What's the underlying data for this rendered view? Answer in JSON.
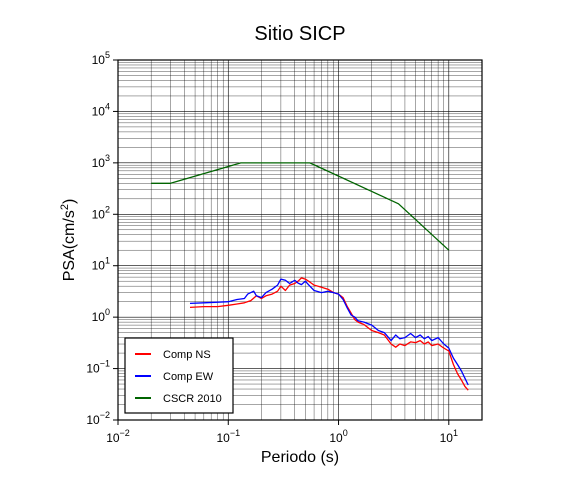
{
  "chart_data": {
    "type": "line",
    "title": "Sitio SICP",
    "xlabel": "Periodo (s)",
    "ylabel": {
      "base": "PSA(cm/s",
      "sup": "2",
      "close": ")"
    },
    "x_scale": "log",
    "y_scale": "log",
    "xlim": [
      0.01,
      20
    ],
    "ylim": [
      0.01,
      100000
    ],
    "grid": true,
    "legend_position": "bottom-left",
    "x_ticks": [
      {
        "value": 0.01,
        "base": "10",
        "exp": "−2"
      },
      {
        "value": 0.1,
        "base": "10",
        "exp": "−1"
      },
      {
        "value": 1,
        "base": "10",
        "exp": "0"
      },
      {
        "value": 10,
        "base": "10",
        "exp": "1"
      }
    ],
    "y_ticks": [
      {
        "value": 0.01,
        "base": "10",
        "exp": "−2"
      },
      {
        "value": 0.1,
        "base": "10",
        "exp": "−1"
      },
      {
        "value": 1,
        "base": "10",
        "exp": "0"
      },
      {
        "value": 10,
        "base": "10",
        "exp": "1"
      },
      {
        "value": 100,
        "base": "10",
        "exp": "2"
      },
      {
        "value": 1000,
        "base": "10",
        "exp": "3"
      },
      {
        "value": 10000,
        "base": "10",
        "exp": "4"
      },
      {
        "value": 100000,
        "base": "10",
        "exp": "5"
      }
    ],
    "series": [
      {
        "name": "Comp NS",
        "color": "#ff0000",
        "x": [
          0.045,
          0.06,
          0.08,
          0.1,
          0.12,
          0.14,
          0.16,
          0.18,
          0.2,
          0.22,
          0.25,
          0.28,
          0.3,
          0.33,
          0.36,
          0.4,
          0.43,
          0.46,
          0.5,
          0.55,
          0.6,
          0.7,
          0.8,
          0.9,
          1.0,
          1.1,
          1.2,
          1.3,
          1.4,
          1.5,
          1.7,
          2.0,
          2.3,
          2.6,
          3.0,
          3.3,
          3.6,
          4.0,
          4.5,
          5.0,
          5.5,
          6.0,
          6.5,
          7.0,
          8.0,
          9.0,
          10.0,
          11.0,
          12.0,
          13.0,
          14.0,
          15.0
        ],
        "y": [
          1.55,
          1.6,
          1.6,
          1.7,
          1.8,
          1.9,
          2.1,
          2.6,
          2.3,
          2.6,
          2.8,
          3.2,
          4.0,
          3.3,
          4.2,
          4.5,
          5.0,
          5.8,
          5.5,
          4.8,
          4.2,
          3.8,
          3.5,
          3.0,
          2.8,
          2.4,
          1.6,
          1.2,
          0.9,
          0.8,
          0.72,
          0.55,
          0.5,
          0.45,
          0.3,
          0.26,
          0.3,
          0.28,
          0.33,
          0.32,
          0.35,
          0.3,
          0.33,
          0.28,
          0.3,
          0.25,
          0.22,
          0.12,
          0.08,
          0.06,
          0.045,
          0.038
        ]
      },
      {
        "name": "Comp EW",
        "color": "#0000ff",
        "x": [
          0.045,
          0.06,
          0.08,
          0.1,
          0.12,
          0.14,
          0.15,
          0.17,
          0.18,
          0.2,
          0.22,
          0.25,
          0.28,
          0.3,
          0.33,
          0.36,
          0.4,
          0.43,
          0.46,
          0.5,
          0.55,
          0.6,
          0.7,
          0.8,
          0.9,
          1.0,
          1.1,
          1.2,
          1.3,
          1.4,
          1.5,
          1.7,
          2.0,
          2.3,
          2.6,
          3.0,
          3.3,
          3.6,
          4.0,
          4.5,
          5.0,
          5.5,
          6.0,
          6.5,
          7.0,
          8.0,
          9.0,
          10.0,
          11.0,
          12.0,
          13.0,
          14.0,
          15.0
        ],
        "y": [
          1.85,
          1.9,
          1.95,
          2.0,
          2.2,
          2.3,
          2.8,
          3.2,
          2.6,
          2.4,
          3.0,
          3.5,
          4.2,
          5.5,
          5.2,
          4.5,
          5.2,
          4.6,
          4.3,
          5.0,
          4.0,
          3.3,
          3.0,
          3.2,
          3.0,
          2.8,
          2.2,
          1.5,
          1.1,
          1.0,
          0.85,
          0.8,
          0.7,
          0.55,
          0.5,
          0.35,
          0.45,
          0.38,
          0.4,
          0.48,
          0.4,
          0.45,
          0.38,
          0.42,
          0.35,
          0.4,
          0.3,
          0.25,
          0.16,
          0.12,
          0.09,
          0.065,
          0.048
        ]
      },
      {
        "name": "CSCR 2010",
        "color": "#006400",
        "x": [
          0.02,
          0.03,
          0.13,
          0.55,
          3.5,
          10.0
        ],
        "y": [
          400,
          400,
          1000,
          1000,
          160,
          20
        ]
      }
    ]
  }
}
